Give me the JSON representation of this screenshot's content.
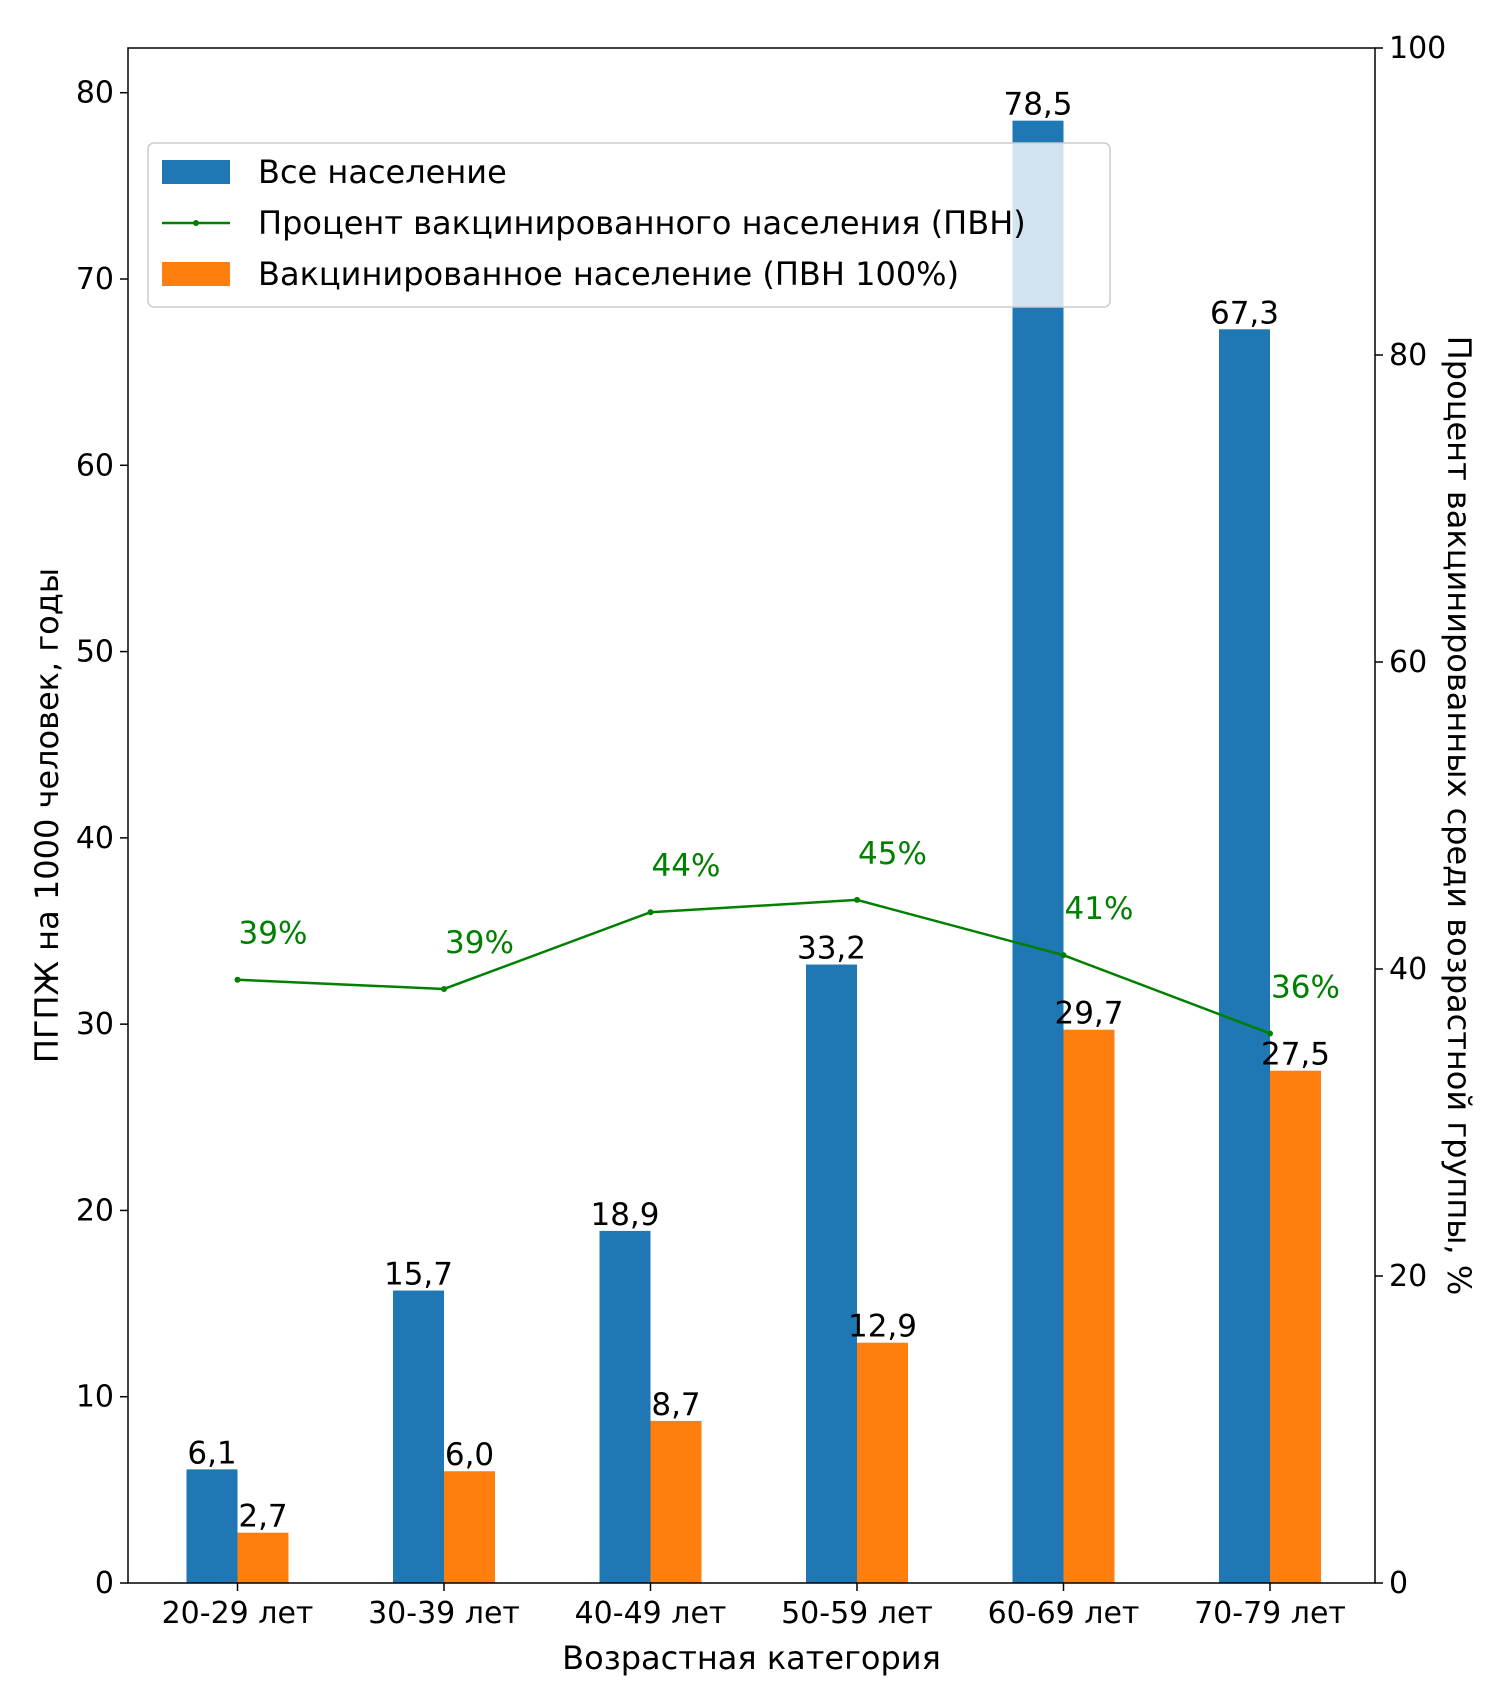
{
  "chart_data": {
    "type": "bar",
    "categories": [
      "20-29 лет",
      "30-39 лет",
      "40-49 лет",
      "50-59 лет",
      "60-69 лет",
      "70-79 лет"
    ],
    "series": [
      {
        "name": "Все население",
        "kind": "bar",
        "axis": "left",
        "color": "#1f77b4",
        "values": [
          6.1,
          15.7,
          18.9,
          33.2,
          78.5,
          67.3
        ],
        "labels": [
          "6,1",
          "15,7",
          "18,9",
          "33,2",
          "78,5",
          "67,3"
        ]
      },
      {
        "name": "Вакцинированное население (ПВН 100%)",
        "kind": "bar",
        "axis": "left",
        "color": "#ff7f0e",
        "values": [
          2.7,
          6.0,
          8.7,
          12.9,
          29.7,
          27.5
        ],
        "labels": [
          "2,7",
          "6,0",
          "8,7",
          "12,9",
          "29,7",
          "27,5"
        ]
      },
      {
        "name": "Процент вакцинированного населения (ПВН)",
        "kind": "line",
        "axis": "right",
        "color": "#008000",
        "values": [
          39.3,
          38.7,
          43.7,
          44.5,
          40.9,
          35.8
        ],
        "labels": [
          "39%",
          "39%",
          "44%",
          "45%",
          "41%",
          "36%"
        ]
      }
    ],
    "legend_order": [
      0,
      2,
      1
    ],
    "legend_position": "upper-left",
    "xlabel": "Возрастная категория",
    "ylabel": "ПГПЖ на 1000 человек, годы",
    "ylabel_right": "Процент вакцинированных среди возрастной группы, %",
    "ylim": [
      0,
      82.4
    ],
    "ylim_right": [
      0,
      100
    ],
    "yticks": [
      0,
      10,
      20,
      30,
      40,
      50,
      60,
      70,
      80
    ],
    "yticks_right": [
      0,
      20,
      40,
      60,
      80,
      100
    ],
    "grid": false
  }
}
